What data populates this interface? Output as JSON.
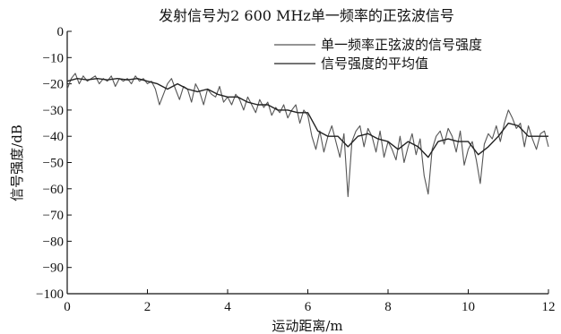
{
  "chart_data": {
    "type": "line",
    "title": "发射信号为2 600 MHz单一频率的正弦波信号",
    "xlabel": "运动距离/m",
    "ylabel": "信号强度/dB",
    "xlim": [
      0,
      12
    ],
    "ylim": [
      -100,
      0
    ],
    "xticks": [
      0,
      2,
      4,
      6,
      8,
      10,
      12
    ],
    "yticks": [
      0,
      -10,
      -20,
      -30,
      -40,
      -50,
      -60,
      -70,
      -80,
      -90,
      -100
    ],
    "grid": false,
    "legend_position": "top-right",
    "series": [
      {
        "name": "单一频率正弦波的信号强度",
        "color": "#555555",
        "x": [
          0,
          0.1,
          0.2,
          0.3,
          0.4,
          0.5,
          0.6,
          0.7,
          0.8,
          0.9,
          1.0,
          1.1,
          1.2,
          1.3,
          1.4,
          1.5,
          1.6,
          1.7,
          1.8,
          1.9,
          2.0,
          2.1,
          2.2,
          2.3,
          2.4,
          2.5,
          2.6,
          2.7,
          2.8,
          2.9,
          3.0,
          3.1,
          3.2,
          3.3,
          3.4,
          3.5,
          3.6,
          3.7,
          3.8,
          3.9,
          4.0,
          4.1,
          4.2,
          4.3,
          4.4,
          4.5,
          4.6,
          4.7,
          4.8,
          4.9,
          5.0,
          5.1,
          5.2,
          5.3,
          5.4,
          5.5,
          5.6,
          5.7,
          5.8,
          5.9,
          6.0,
          6.1,
          6.2,
          6.3,
          6.4,
          6.5,
          6.6,
          6.7,
          6.8,
          6.9,
          7.0,
          7.1,
          7.2,
          7.3,
          7.4,
          7.5,
          7.6,
          7.7,
          7.8,
          7.9,
          8.0,
          8.1,
          8.2,
          8.3,
          8.4,
          8.5,
          8.6,
          8.7,
          8.8,
          8.9,
          9.0,
          9.1,
          9.2,
          9.3,
          9.4,
          9.5,
          9.6,
          9.7,
          9.8,
          9.9,
          10.0,
          10.1,
          10.2,
          10.3,
          10.4,
          10.5,
          10.6,
          10.7,
          10.8,
          10.9,
          11.0,
          11.1,
          11.2,
          11.3,
          11.4,
          11.5,
          11.6,
          11.7,
          11.8,
          11.9,
          12.0
        ],
        "y": [
          -22,
          -18,
          -16,
          -20,
          -17,
          -19,
          -18,
          -17,
          -20,
          -18,
          -19,
          -17,
          -21,
          -18,
          -19,
          -18,
          -20,
          -17,
          -19,
          -18,
          -20,
          -19,
          -22,
          -28,
          -24,
          -20,
          -18,
          -22,
          -26,
          -21,
          -22,
          -27,
          -20,
          -23,
          -28,
          -22,
          -24,
          -25,
          -21,
          -27,
          -25,
          -28,
          -24,
          -26,
          -30,
          -25,
          -28,
          -31,
          -26,
          -29,
          -27,
          -32,
          -29,
          -31,
          -28,
          -33,
          -30,
          -28,
          -35,
          -30,
          -32,
          -40,
          -45,
          -38,
          -46,
          -40,
          -36,
          -42,
          -48,
          -39,
          -63,
          -42,
          -38,
          -36,
          -44,
          -37,
          -40,
          -46,
          -38,
          -48,
          -42,
          -45,
          -49,
          -40,
          -50,
          -44,
          -39,
          -47,
          -41,
          -55,
          -62,
          -45,
          -40,
          -38,
          -43,
          -37,
          -40,
          -46,
          -38,
          -51,
          -45,
          -42,
          -49,
          -58,
          -43,
          -39,
          -41,
          -36,
          -42,
          -35,
          -30,
          -33,
          -37,
          -35,
          -44,
          -36,
          -41,
          -45,
          -39,
          -38,
          -44
        ]
      },
      {
        "name": "信号强度的平均值",
        "color": "#222222",
        "x": [
          0,
          0.25,
          0.5,
          0.75,
          1.0,
          1.25,
          1.5,
          1.75,
          2.0,
          2.25,
          2.5,
          2.75,
          3.0,
          3.25,
          3.5,
          3.75,
          4.0,
          4.25,
          4.5,
          4.75,
          5.0,
          5.25,
          5.5,
          5.75,
          6.0,
          6.25,
          6.5,
          6.75,
          7.0,
          7.25,
          7.5,
          7.75,
          8.0,
          8.25,
          8.5,
          8.75,
          9.0,
          9.25,
          9.5,
          9.75,
          10.0,
          10.25,
          10.5,
          10.75,
          11.0,
          11.25,
          11.5,
          11.75,
          12.0
        ],
        "y": [
          -19,
          -18,
          -18.5,
          -18,
          -18.5,
          -18,
          -18.5,
          -18,
          -19,
          -20,
          -22,
          -20,
          -22,
          -23,
          -22,
          -24,
          -25,
          -25,
          -27,
          -28,
          -28,
          -30,
          -30,
          -31,
          -31,
          -38,
          -40,
          -40,
          -44,
          -40,
          -39,
          -41,
          -42,
          -45,
          -42,
          -44,
          -48,
          -42,
          -41,
          -42,
          -42,
          -47,
          -44,
          -40,
          -35,
          -36,
          -40,
          -40,
          -40
        ]
      }
    ]
  }
}
